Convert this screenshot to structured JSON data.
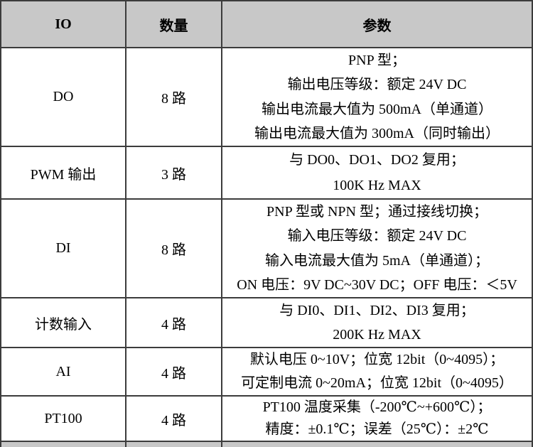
{
  "table": {
    "headers": {
      "io": "IO",
      "qty": "数量",
      "params": "参数"
    },
    "rows": [
      {
        "io": "DO",
        "qty": "8 路",
        "params": [
          "PNP 型；",
          "输出电压等级：额定 24V DC",
          "输出电流最大值为 500mA（单通道）",
          "输出电流最大值为 300mA（同时输出）"
        ]
      },
      {
        "io": "PWM 输出",
        "qty": "3 路",
        "params": [
          "与 DO0、DO1、DO2 复用；",
          "100K Hz MAX"
        ]
      },
      {
        "io": "DI",
        "qty": "8 路",
        "params": [
          "PNP 型或 NPN 型；通过接线切换；",
          "输入电压等级：额定 24V DC",
          "输入电流最大值为 5mA（单通道）；",
          "ON 电压：9V DC~30V DC；OFF 电压：＜5V"
        ]
      },
      {
        "io": "计数输入",
        "qty": "4 路",
        "params": [
          "与 DI0、DI1、DI2、DI3 复用；",
          "200K Hz MAX"
        ]
      },
      {
        "io": "AI",
        "qty": "4 路",
        "params": [
          "默认电压 0~10V；位宽 12bit（0~4095）；",
          "可定制电流 0~20mA；位宽 12bit（0~4095）"
        ]
      },
      {
        "io": "PT100",
        "qty": "4 路",
        "params": [
          "PT100 温度采集（-200℃~+600℃）；",
          "精度：±0.1℃；误差（25℃）：±2℃"
        ]
      }
    ],
    "colors": {
      "header_bg": "#c8c8c8",
      "border": "#3c3c3c",
      "text": "#000000"
    }
  }
}
